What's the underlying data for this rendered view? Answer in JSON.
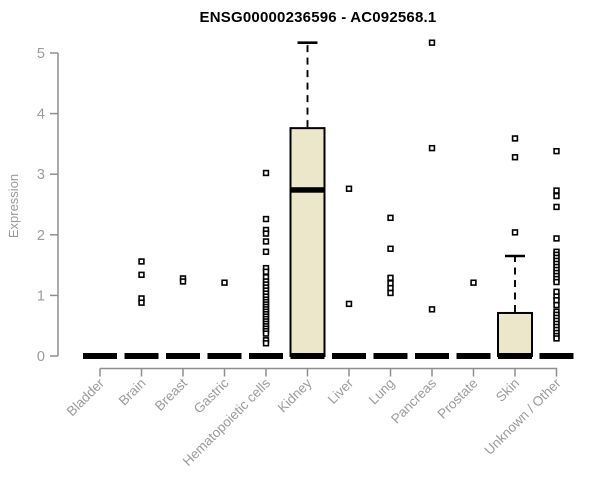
{
  "chart_data": {
    "type": "boxplot",
    "title": "ENSG00000236596 - AC092568.1",
    "ylabel": "Expression",
    "ylim": [
      0,
      5
    ],
    "yticks": [
      0,
      1,
      2,
      3,
      4,
      5
    ],
    "grid": false,
    "legend": "none",
    "categories": [
      "Bladder",
      "Brain",
      "Breast",
      "Gastric",
      "Hematopoietic cells",
      "Kidney",
      "Liver",
      "Lung",
      "Pancreas",
      "Prostate",
      "Skin",
      "Unknown / Other"
    ],
    "boxes": [
      {
        "label": "Bladder",
        "q1": 0,
        "median": 0,
        "q3": 0,
        "whisker_low": 0,
        "whisker_high": 0,
        "outliers": []
      },
      {
        "label": "Brain",
        "q1": 0,
        "median": 0,
        "q3": 0,
        "whisker_low": 0,
        "whisker_high": 0,
        "outliers": [
          1.56,
          1.34,
          0.95,
          0.88
        ]
      },
      {
        "label": "Breast",
        "q1": 0,
        "median": 0,
        "q3": 0,
        "whisker_low": 0,
        "whisker_high": 0,
        "outliers": [
          1.28,
          1.23
        ]
      },
      {
        "label": "Gastric",
        "q1": 0,
        "median": 0,
        "q3": 0,
        "whisker_low": 0,
        "whisker_high": 0,
        "outliers": [
          1.21
        ]
      },
      {
        "label": "Hematopoietic cells",
        "q1": 0,
        "median": 0,
        "q3": 0,
        "whisker_low": 0,
        "whisker_high": 0,
        "outliers": [
          3.02,
          2.26,
          2.08,
          2.02,
          1.89,
          1.72,
          1.45,
          1.39,
          1.3,
          1.23,
          1.18,
          1.13,
          1.08,
          1.03,
          0.98,
          0.93,
          0.89,
          0.85,
          0.81,
          0.77,
          0.73,
          0.69,
          0.65,
          0.61,
          0.57,
          0.53,
          0.49,
          0.45,
          0.41,
          0.37,
          0.26,
          0.21
        ]
      },
      {
        "label": "Kidney",
        "q1": 0,
        "median": 2.74,
        "q3": 3.76,
        "whisker_low": 0,
        "whisker_high": 5.17,
        "outliers": []
      },
      {
        "label": "Liver",
        "q1": 0,
        "median": 0,
        "q3": 0,
        "whisker_low": 0,
        "whisker_high": 0,
        "outliers": [
          2.76,
          0.86
        ]
      },
      {
        "label": "Lung",
        "q1": 0,
        "median": 0,
        "q3": 0,
        "whisker_low": 0,
        "whisker_high": 0,
        "outliers": [
          2.28,
          1.77,
          1.29,
          1.2,
          1.12,
          1.04
        ]
      },
      {
        "label": "Pancreas",
        "q1": 0,
        "median": 0,
        "q3": 0,
        "whisker_low": 0,
        "whisker_high": 0,
        "outliers": [
          5.17,
          3.43,
          0.77
        ]
      },
      {
        "label": "Prostate",
        "q1": 0,
        "median": 0,
        "q3": 0,
        "whisker_low": 0,
        "whisker_high": 0,
        "outliers": [
          1.21
        ]
      },
      {
        "label": "Skin",
        "q1": 0,
        "median": 0,
        "q3": 0.71,
        "whisker_low": 0,
        "whisker_high": 1.65,
        "outliers": [
          3.59,
          3.28,
          2.04
        ]
      },
      {
        "label": "Unknown / Other",
        "q1": 0,
        "median": 0,
        "q3": 0,
        "whisker_low": 0,
        "whisker_high": 0,
        "outliers": [
          3.38,
          2.73,
          2.64,
          2.46,
          1.94,
          1.72,
          1.67,
          1.62,
          1.57,
          1.52,
          1.47,
          1.42,
          1.37,
          1.32,
          1.27,
          1.22,
          1.06,
          0.98,
          0.92,
          0.84,
          0.73,
          0.68,
          0.63,
          0.58,
          0.53,
          0.48,
          0.43,
          0.38,
          0.33,
          0.29
        ]
      }
    ],
    "colors": {
      "box_fill": "#ECE6CB",
      "box_stroke": "#000000",
      "median": "#000000",
      "outlier_fill": "#ffffff",
      "outlier_stroke": "#000000",
      "axis": "#8f8f8f",
      "tick_label": "#9b9b9b",
      "title": "#000000",
      "background": "#ffffff"
    }
  }
}
